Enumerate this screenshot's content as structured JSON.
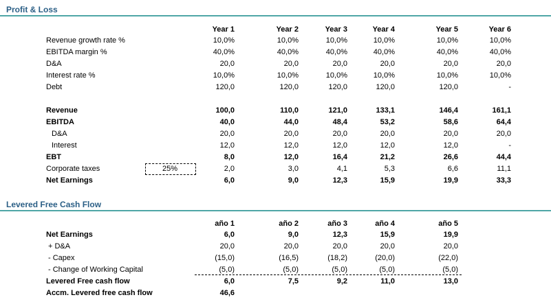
{
  "sections": [
    {
      "title": "Profit & Loss",
      "header": [
        "Year 1",
        "Year 2",
        "Year 3",
        "Year 4",
        "Year 5",
        "Year 6"
      ],
      "rows": [
        {
          "label": "Revenue growth rate %",
          "values": [
            "10,0%",
            "10,0%",
            "10,0%",
            "10,0%",
            "10,0%",
            "10,0%"
          ]
        },
        {
          "label": "EBITDA margin %",
          "values": [
            "40,0%",
            "40,0%",
            "40,0%",
            "40,0%",
            "40,0%",
            "40,0%"
          ]
        },
        {
          "label": "D&A",
          "values": [
            "20,0",
            "20,0",
            "20,0",
            "20,0",
            "20,0",
            "20,0"
          ]
        },
        {
          "label": "Interest rate %",
          "values": [
            "10,0%",
            "10,0%",
            "10,0%",
            "10,0%",
            "10,0%",
            "10,0%"
          ]
        },
        {
          "label": "Debt",
          "values": [
            "120,0",
            "120,0",
            "120,0",
            "120,0",
            "120,0",
            "-"
          ]
        },
        {
          "label": "Revenue",
          "values": [
            "100,0",
            "110,0",
            "121,0",
            "133,1",
            "146,4",
            "161,1"
          ]
        },
        {
          "label": "EBITDA",
          "values": [
            "40,0",
            "44,0",
            "48,4",
            "53,2",
            "58,6",
            "64,4"
          ]
        },
        {
          "label": "D&A",
          "values": [
            "20,0",
            "20,0",
            "20,0",
            "20,0",
            "20,0",
            "20,0"
          ]
        },
        {
          "label": "Interest",
          "values": [
            "12,0",
            "12,0",
            "12,0",
            "12,0",
            "12,0",
            "-"
          ]
        },
        {
          "label": "EBT",
          "values": [
            "8,0",
            "12,0",
            "16,4",
            "21,2",
            "26,6",
            "44,4"
          ]
        },
        {
          "label": "Corporate taxes",
          "input": "25%",
          "values": [
            "2,0",
            "3,0",
            "4,1",
            "5,3",
            "6,6",
            "11,1"
          ]
        },
        {
          "label": "Net Earnings",
          "values": [
            "6,0",
            "9,0",
            "12,3",
            "15,9",
            "19,9",
            "33,3"
          ]
        }
      ]
    },
    {
      "title": "Levered Free Cash Flow",
      "header": [
        "año 1",
        "año 2",
        "año 3",
        "año 4",
        "año 5"
      ],
      "rows": [
        {
          "label": "Net Earnings",
          "values": [
            "6,0",
            "9,0",
            "12,3",
            "15,9",
            "19,9"
          ]
        },
        {
          "label": "+ D&A",
          "values": [
            "20,0",
            "20,0",
            "20,0",
            "20,0",
            "20,0"
          ]
        },
        {
          "label": "- Capex",
          "values": [
            "(15,0)",
            "(16,5)",
            "(18,2)",
            "(20,0)",
            "(22,0)"
          ]
        },
        {
          "label": "- Change of Working Capital",
          "values": [
            "(5,0)",
            "(5,0)",
            "(5,0)",
            "(5,0)",
            "(5,0)"
          ]
        },
        {
          "label": "Levered Free cash flow",
          "values": [
            "6,0",
            "7,5",
            "9,2",
            "11,0",
            "13,0"
          ]
        },
        {
          "label": "Accm. Levered free cash flow",
          "values": [
            "46,6"
          ]
        }
      ]
    }
  ]
}
